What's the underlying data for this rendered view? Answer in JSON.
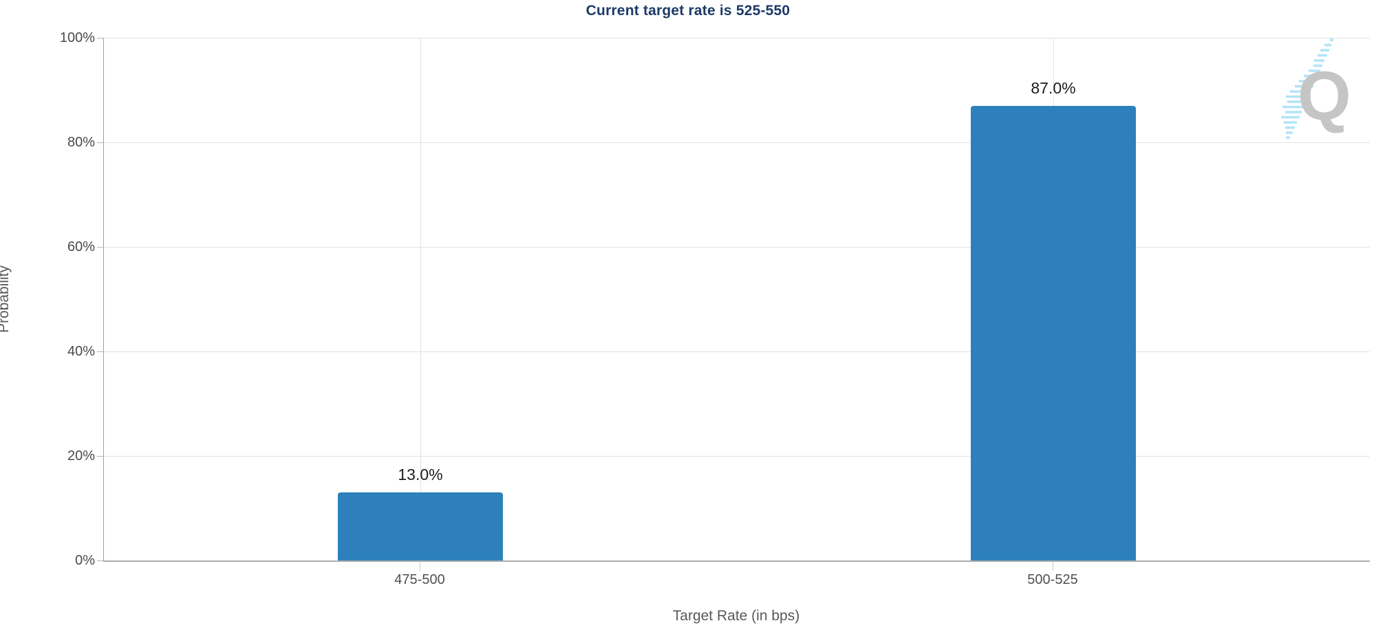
{
  "title": {
    "text": "Current target rate is 525-550",
    "color": "#1d3a67"
  },
  "chart_data": {
    "type": "bar",
    "categories": [
      "475-500",
      "500-525"
    ],
    "values": [
      13.0,
      87.0
    ],
    "value_labels": [
      "13.0%",
      "87.0%"
    ],
    "title": "Current target rate is 525-550",
    "xlabel": "Target Rate (in bps)",
    "ylabel": "Probability",
    "ylim": [
      0,
      100
    ],
    "ytick_step": 20,
    "ytick_labels": [
      "0%",
      "20%",
      "40%",
      "60%",
      "80%",
      "100%"
    ],
    "grid": true,
    "legend": "none",
    "bar_color": "#2d80bb"
  },
  "logo": {
    "letter": "Q",
    "letter_color": "#c5c5c5",
    "swoosh_color": "#b3e3f7"
  },
  "colors": {
    "gridline": "#e2e2e2",
    "axis_line": "#a5a5a5",
    "tick_text": "#4a4a4a",
    "axis_title_text": "#585858",
    "value_text": "#1c1c1c",
    "background": "#ffffff"
  }
}
